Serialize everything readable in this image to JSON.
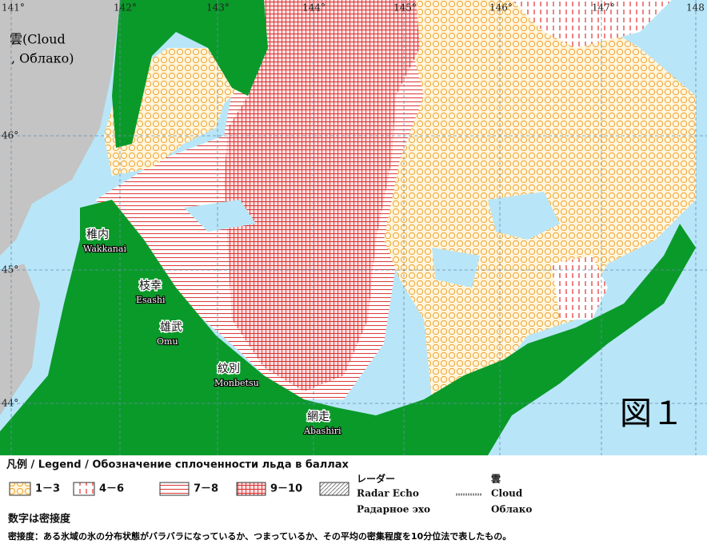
{
  "map": {
    "longitude_labels": [
      "141°",
      "142°",
      "143°",
      "144°",
      "145°",
      "146°",
      "147°",
      "148"
    ],
    "latitude_labels": [
      "46°",
      "45°",
      "44°"
    ],
    "cloud_label": [
      "雲(Cloud",
      ", Облако)"
    ],
    "places": [
      {
        "name": "稚内",
        "romaji": "Wakkanai"
      },
      {
        "name": "枝幸",
        "romaji": "Esashi"
      },
      {
        "name": "雄武",
        "romaji": "Omu"
      },
      {
        "name": "紋別",
        "romaji": "Monbetsu"
      },
      {
        "name": "網走",
        "romaji": "Abashiri"
      }
    ],
    "figure_label": "図１"
  },
  "legend": {
    "title": "凡例 / Legend / Обозначение сплоченности льда в баллах",
    "items": [
      "1－3",
      "4－6",
      "7－8",
      "9－10"
    ],
    "radar": [
      "レーダー",
      "Radar Echo",
      "Радарное эхо"
    ],
    "cloud": [
      "雲",
      "Cloud",
      "Облако"
    ],
    "note": "数字は密接度",
    "definition": "密接度：ある氷域の氷の分布状態がバラバラになっているか、つまっているか、その平均の密集程度を10分位法で表したもの。"
  }
}
